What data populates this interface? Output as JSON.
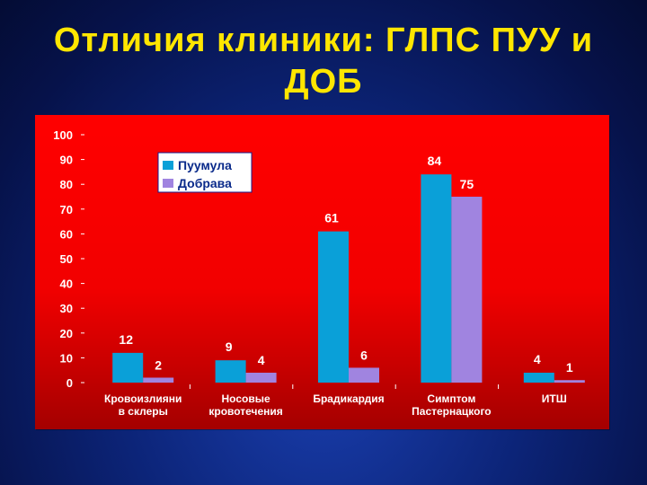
{
  "slide": {
    "title_line1": "Отличия клиники: ГЛПС  ПУУ и",
    "title_line2": "ДОБ"
  },
  "colors": {
    "title": "#ffe600",
    "panel": "#ff0000",
    "series_puumula": "#0aa0d8",
    "series_dobrava": "#a084e0",
    "legend_bg": "#ffffff",
    "text": "#ffffff"
  },
  "chart_data": {
    "type": "bar",
    "categories": [
      [
        "Кровоизлияни",
        "в склеры"
      ],
      [
        "Носовые",
        "кровотечения"
      ],
      [
        "Брадикардия"
      ],
      [
        "Симптом",
        "Пастернацкого"
      ],
      [
        "ИТШ"
      ]
    ],
    "series": [
      {
        "name": "Пуумула",
        "values": [
          12,
          9,
          61,
          84,
          4
        ]
      },
      {
        "name": "Добрава",
        "values": [
          2,
          4,
          6,
          75,
          1
        ]
      }
    ],
    "ylim": [
      0,
      100
    ],
    "yticks": [
      "0",
      "10",
      "20",
      "30",
      "40",
      "50",
      "60",
      "70",
      "80",
      "90",
      "100"
    ],
    "legend_position": "top-left",
    "grid": false
  }
}
